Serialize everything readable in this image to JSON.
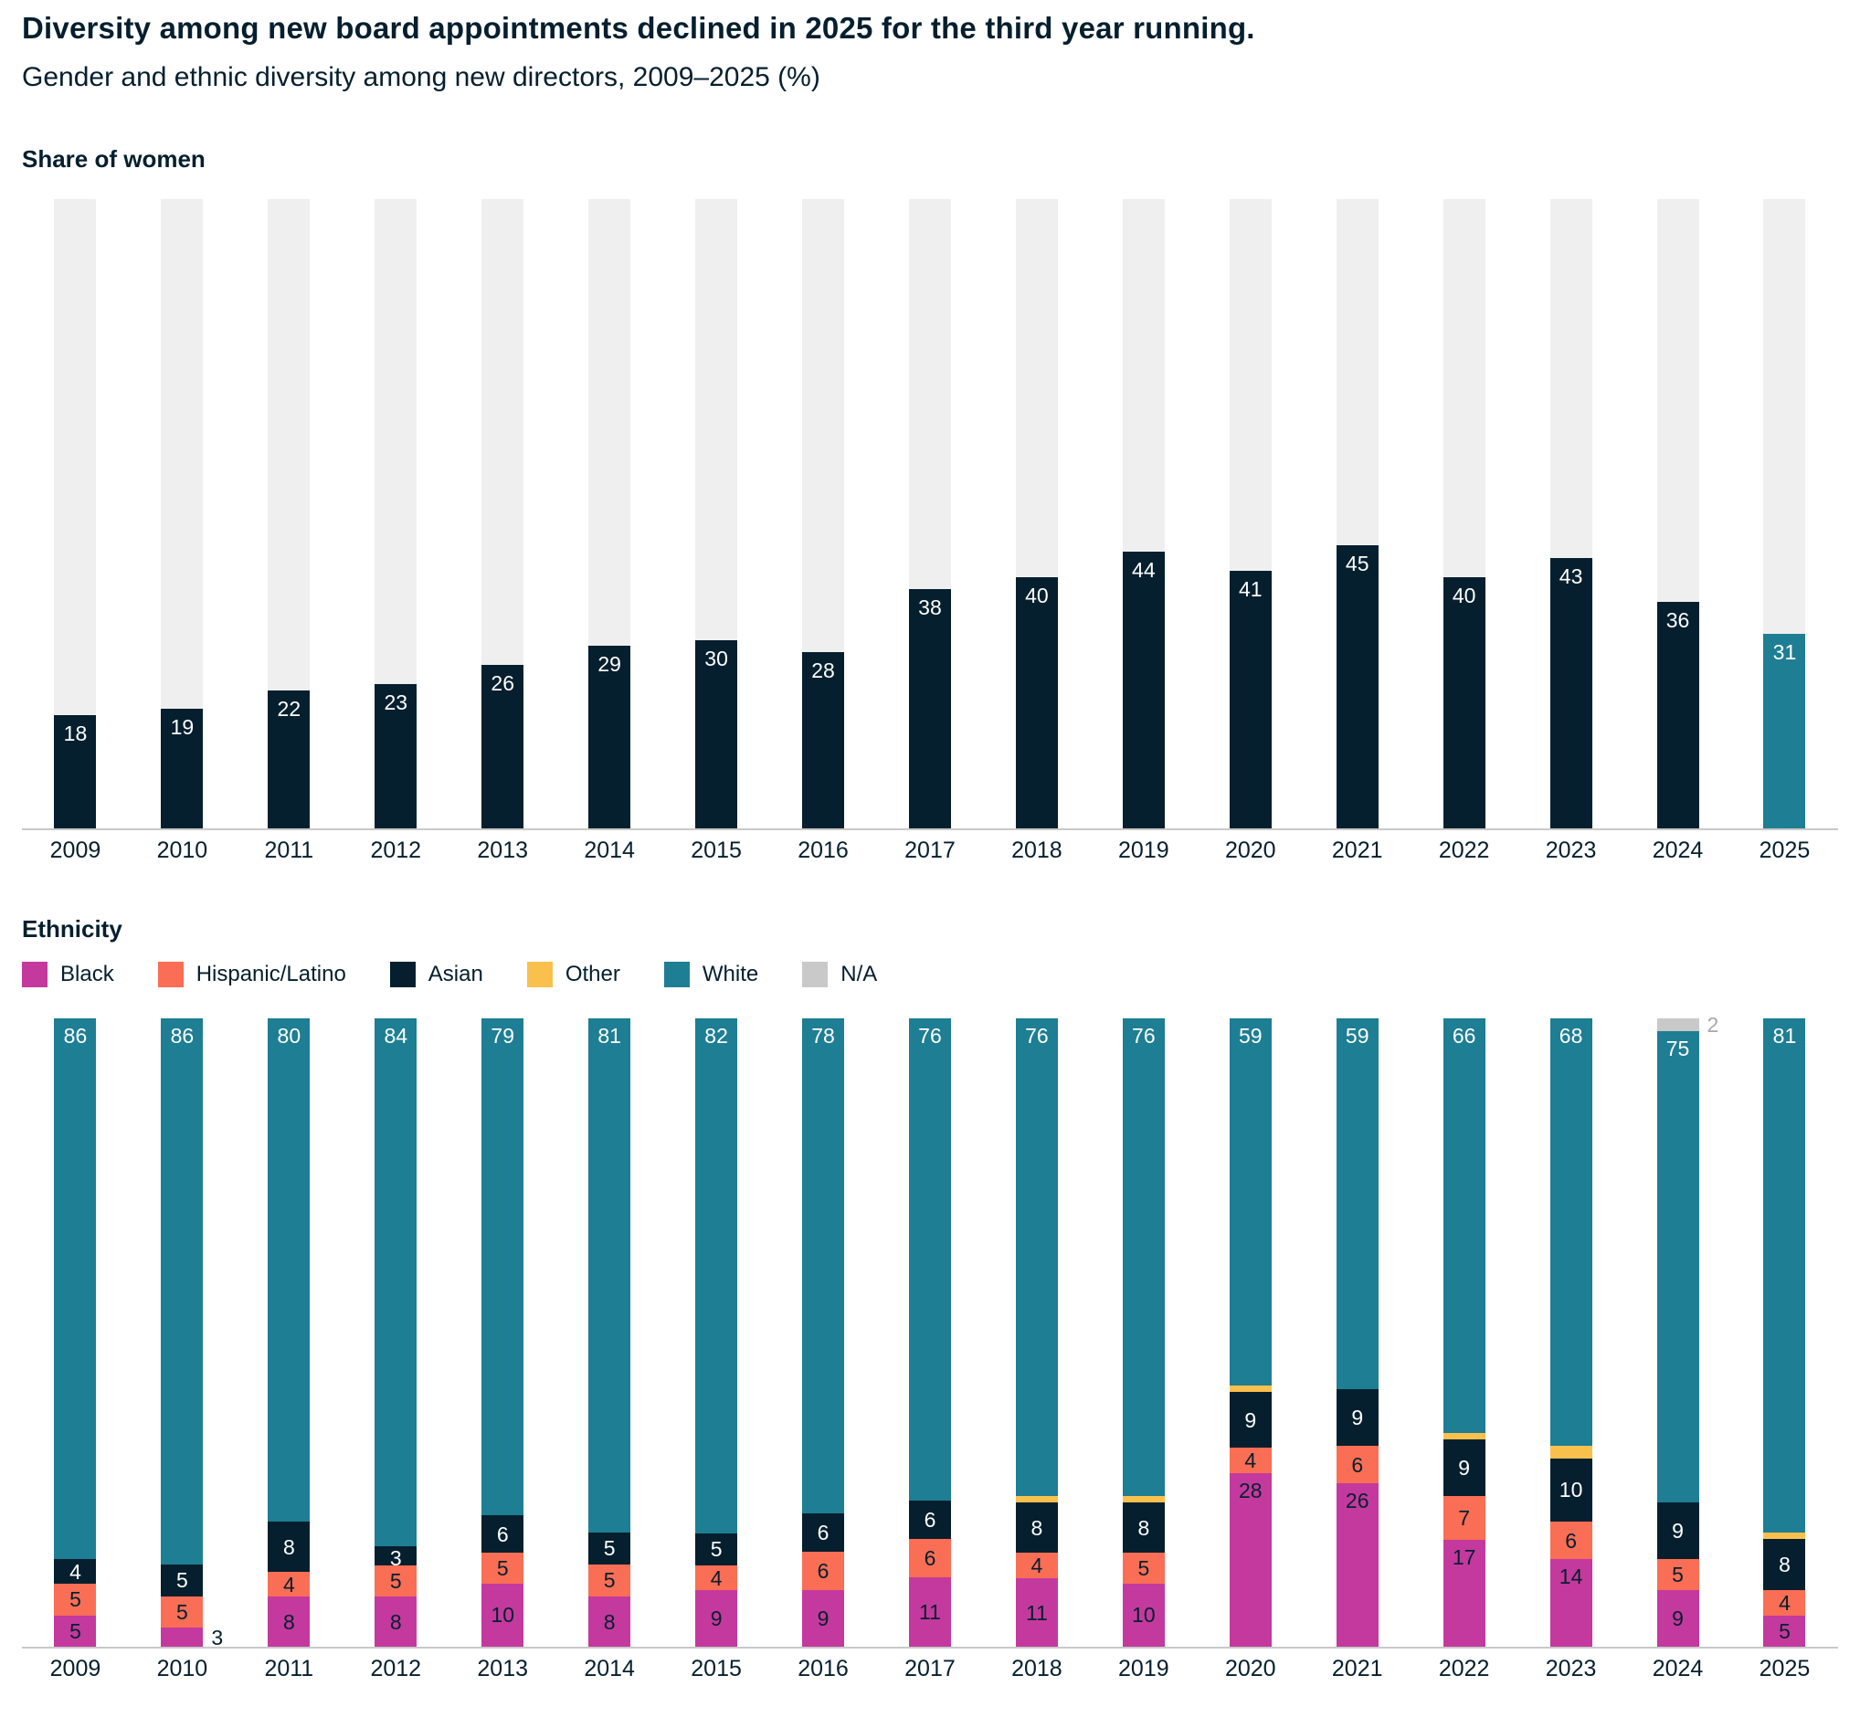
{
  "header": {
    "title": "Diversity among new board appointments declined in 2025 for the third year running.",
    "subtitle": "Gender and ethnic diversity among new directors, 2009–2025 (%)"
  },
  "colors": {
    "navy": "#051f2e",
    "teal": "#1e7e93",
    "magenta": "#c4399d",
    "coral": "#f96e55",
    "yellow": "#fac04e",
    "na_gray": "#c9c9c9",
    "track_gray": "#f0eff0",
    "axis_gray": "#c9c9c9",
    "outside_na_label_color": "#a8a8a8"
  },
  "chart_data": [
    {
      "type": "bar",
      "title": "Share of women",
      "categories": [
        "2009",
        "2010",
        "2011",
        "2012",
        "2013",
        "2014",
        "2015",
        "2016",
        "2017",
        "2018",
        "2019",
        "2020",
        "2021",
        "2022",
        "2023",
        "2024",
        "2025"
      ],
      "values": [
        18,
        19,
        22,
        23,
        26,
        29,
        30,
        28,
        38,
        40,
        44,
        41,
        45,
        40,
        43,
        36,
        31
      ],
      "ylim": [
        0,
        100
      ],
      "grid": false,
      "bar_color": "#051f2e",
      "highlight_last_color": "#1e7e93",
      "track_color": "#f0eff0",
      "value_labels": "inside-top-white"
    },
    {
      "type": "bar",
      "stacked": true,
      "normalized_to_100": true,
      "title": "Ethnicity",
      "legend_position": "top",
      "categories": [
        "2009",
        "2010",
        "2011",
        "2012",
        "2013",
        "2014",
        "2015",
        "2016",
        "2017",
        "2018",
        "2019",
        "2020",
        "2021",
        "2022",
        "2023",
        "2024",
        "2025"
      ],
      "series": [
        {
          "name": "Black",
          "color": "#c4399d",
          "label_color": "#051f2e",
          "values": [
            5,
            3,
            8,
            8,
            10,
            8,
            9,
            9,
            11,
            11,
            10,
            28,
            26,
            17,
            14,
            9,
            5
          ]
        },
        {
          "name": "Hispanic/Latino",
          "color": "#f96e55",
          "label_color": "#051f2e",
          "values": [
            5,
            5,
            4,
            5,
            5,
            5,
            4,
            6,
            6,
            4,
            5,
            4,
            6,
            7,
            6,
            5,
            4
          ]
        },
        {
          "name": "Asian",
          "color": "#051f2e",
          "label_color": "#ffffff",
          "values": [
            4,
            5,
            8,
            3,
            6,
            5,
            5,
            6,
            6,
            8,
            8,
            9,
            9,
            9,
            10,
            9,
            8
          ]
        },
        {
          "name": "Other",
          "color": "#fac04e",
          "label_color": "#ffffff",
          "label_position": "above",
          "values": [
            0,
            0,
            0,
            0,
            0,
            0,
            0,
            0,
            0,
            1,
            1,
            1,
            0,
            1,
            2,
            0,
            1
          ]
        },
        {
          "name": "White",
          "color": "#1e7e93",
          "label_color": "#ffffff",
          "values": [
            86,
            86,
            80,
            84,
            79,
            81,
            82,
            78,
            76,
            76,
            76,
            59,
            59,
            66,
            68,
            75,
            81
          ]
        },
        {
          "name": "N/A",
          "color": "#c9c9c9",
          "label_color": "#a8a8a8",
          "values": [
            0,
            0,
            0,
            0,
            0,
            0,
            0,
            0,
            0,
            0,
            0,
            0,
            0,
            0,
            0,
            2,
            0
          ]
        }
      ],
      "outside_labels": [
        {
          "category": "2010",
          "series": "Black"
        },
        {
          "category": "2024",
          "series": "N/A"
        }
      ],
      "ylim": [
        0,
        100
      ]
    }
  ]
}
